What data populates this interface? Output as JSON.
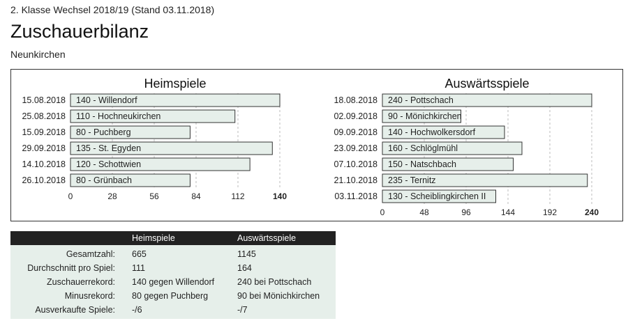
{
  "header": {
    "subtitle": "2. Klasse Wechsel 2018/19 (Stand 03.11.2018)",
    "title": "Zuschauerbilanz",
    "team": "Neunkirchen"
  },
  "colors": {
    "bar_fill": "#e6efea",
    "bar_stroke": "#333333",
    "grid": "#bbbbbb",
    "header_bg": "#222222"
  },
  "chart_data": [
    {
      "type": "bar",
      "orientation": "horizontal",
      "title": "Heimspiele",
      "categories": [
        "15.08.2018",
        "25.08.2018",
        "15.09.2018",
        "29.09.2018",
        "14.10.2018",
        "26.10.2018"
      ],
      "values": [
        140,
        110,
        80,
        135,
        120,
        80
      ],
      "bar_labels": [
        "140 - Willendorf",
        "110 - Hochneukirchen",
        "80 - Puchberg",
        "135 - St. Egyden",
        "120 - Schottwien",
        "80 - Grünbach"
      ],
      "xlim": [
        0,
        140
      ],
      "ticks": [
        "0",
        "28",
        "56",
        "84",
        "112",
        "140"
      ],
      "grid": true
    },
    {
      "type": "bar",
      "orientation": "horizontal",
      "title": "Auswärtsspiele",
      "categories": [
        "18.08.2018",
        "02.09.2018",
        "09.09.2018",
        "23.09.2018",
        "07.10.2018",
        "21.10.2018",
        "03.11.2018"
      ],
      "values": [
        240,
        90,
        140,
        160,
        150,
        235,
        130
      ],
      "bar_labels": [
        "240 - Pottschach",
        "90 - Mönichkirchen",
        "140 - Hochwolkersdorf",
        "160 - Schlöglmühl",
        "150 - Natschbach",
        "235 - Ternitz",
        "130 - Scheiblingkirchen II"
      ],
      "xlim": [
        0,
        240
      ],
      "ticks": [
        "0",
        "48",
        "96",
        "144",
        "192",
        "240"
      ],
      "grid": true
    }
  ],
  "stats": {
    "columns": [
      "Heimspiele",
      "Auswärtsspiele"
    ],
    "rows": [
      {
        "label": "Gesamtzahl:",
        "home": "665",
        "away": "1145"
      },
      {
        "label": "Durchschnitt pro Spiel:",
        "home": "111",
        "away": "164"
      },
      {
        "label": "Zuschauerrekord:",
        "home": "140 gegen Willendorf",
        "away": "240 bei Pottschach"
      },
      {
        "label": "Minusrekord:",
        "home": "80 gegen Puchberg",
        "away": "90 bei Mönichkirchen"
      },
      {
        "label": "Ausverkaufte Spiele:",
        "home": "-/6",
        "away": "-/7"
      }
    ]
  }
}
